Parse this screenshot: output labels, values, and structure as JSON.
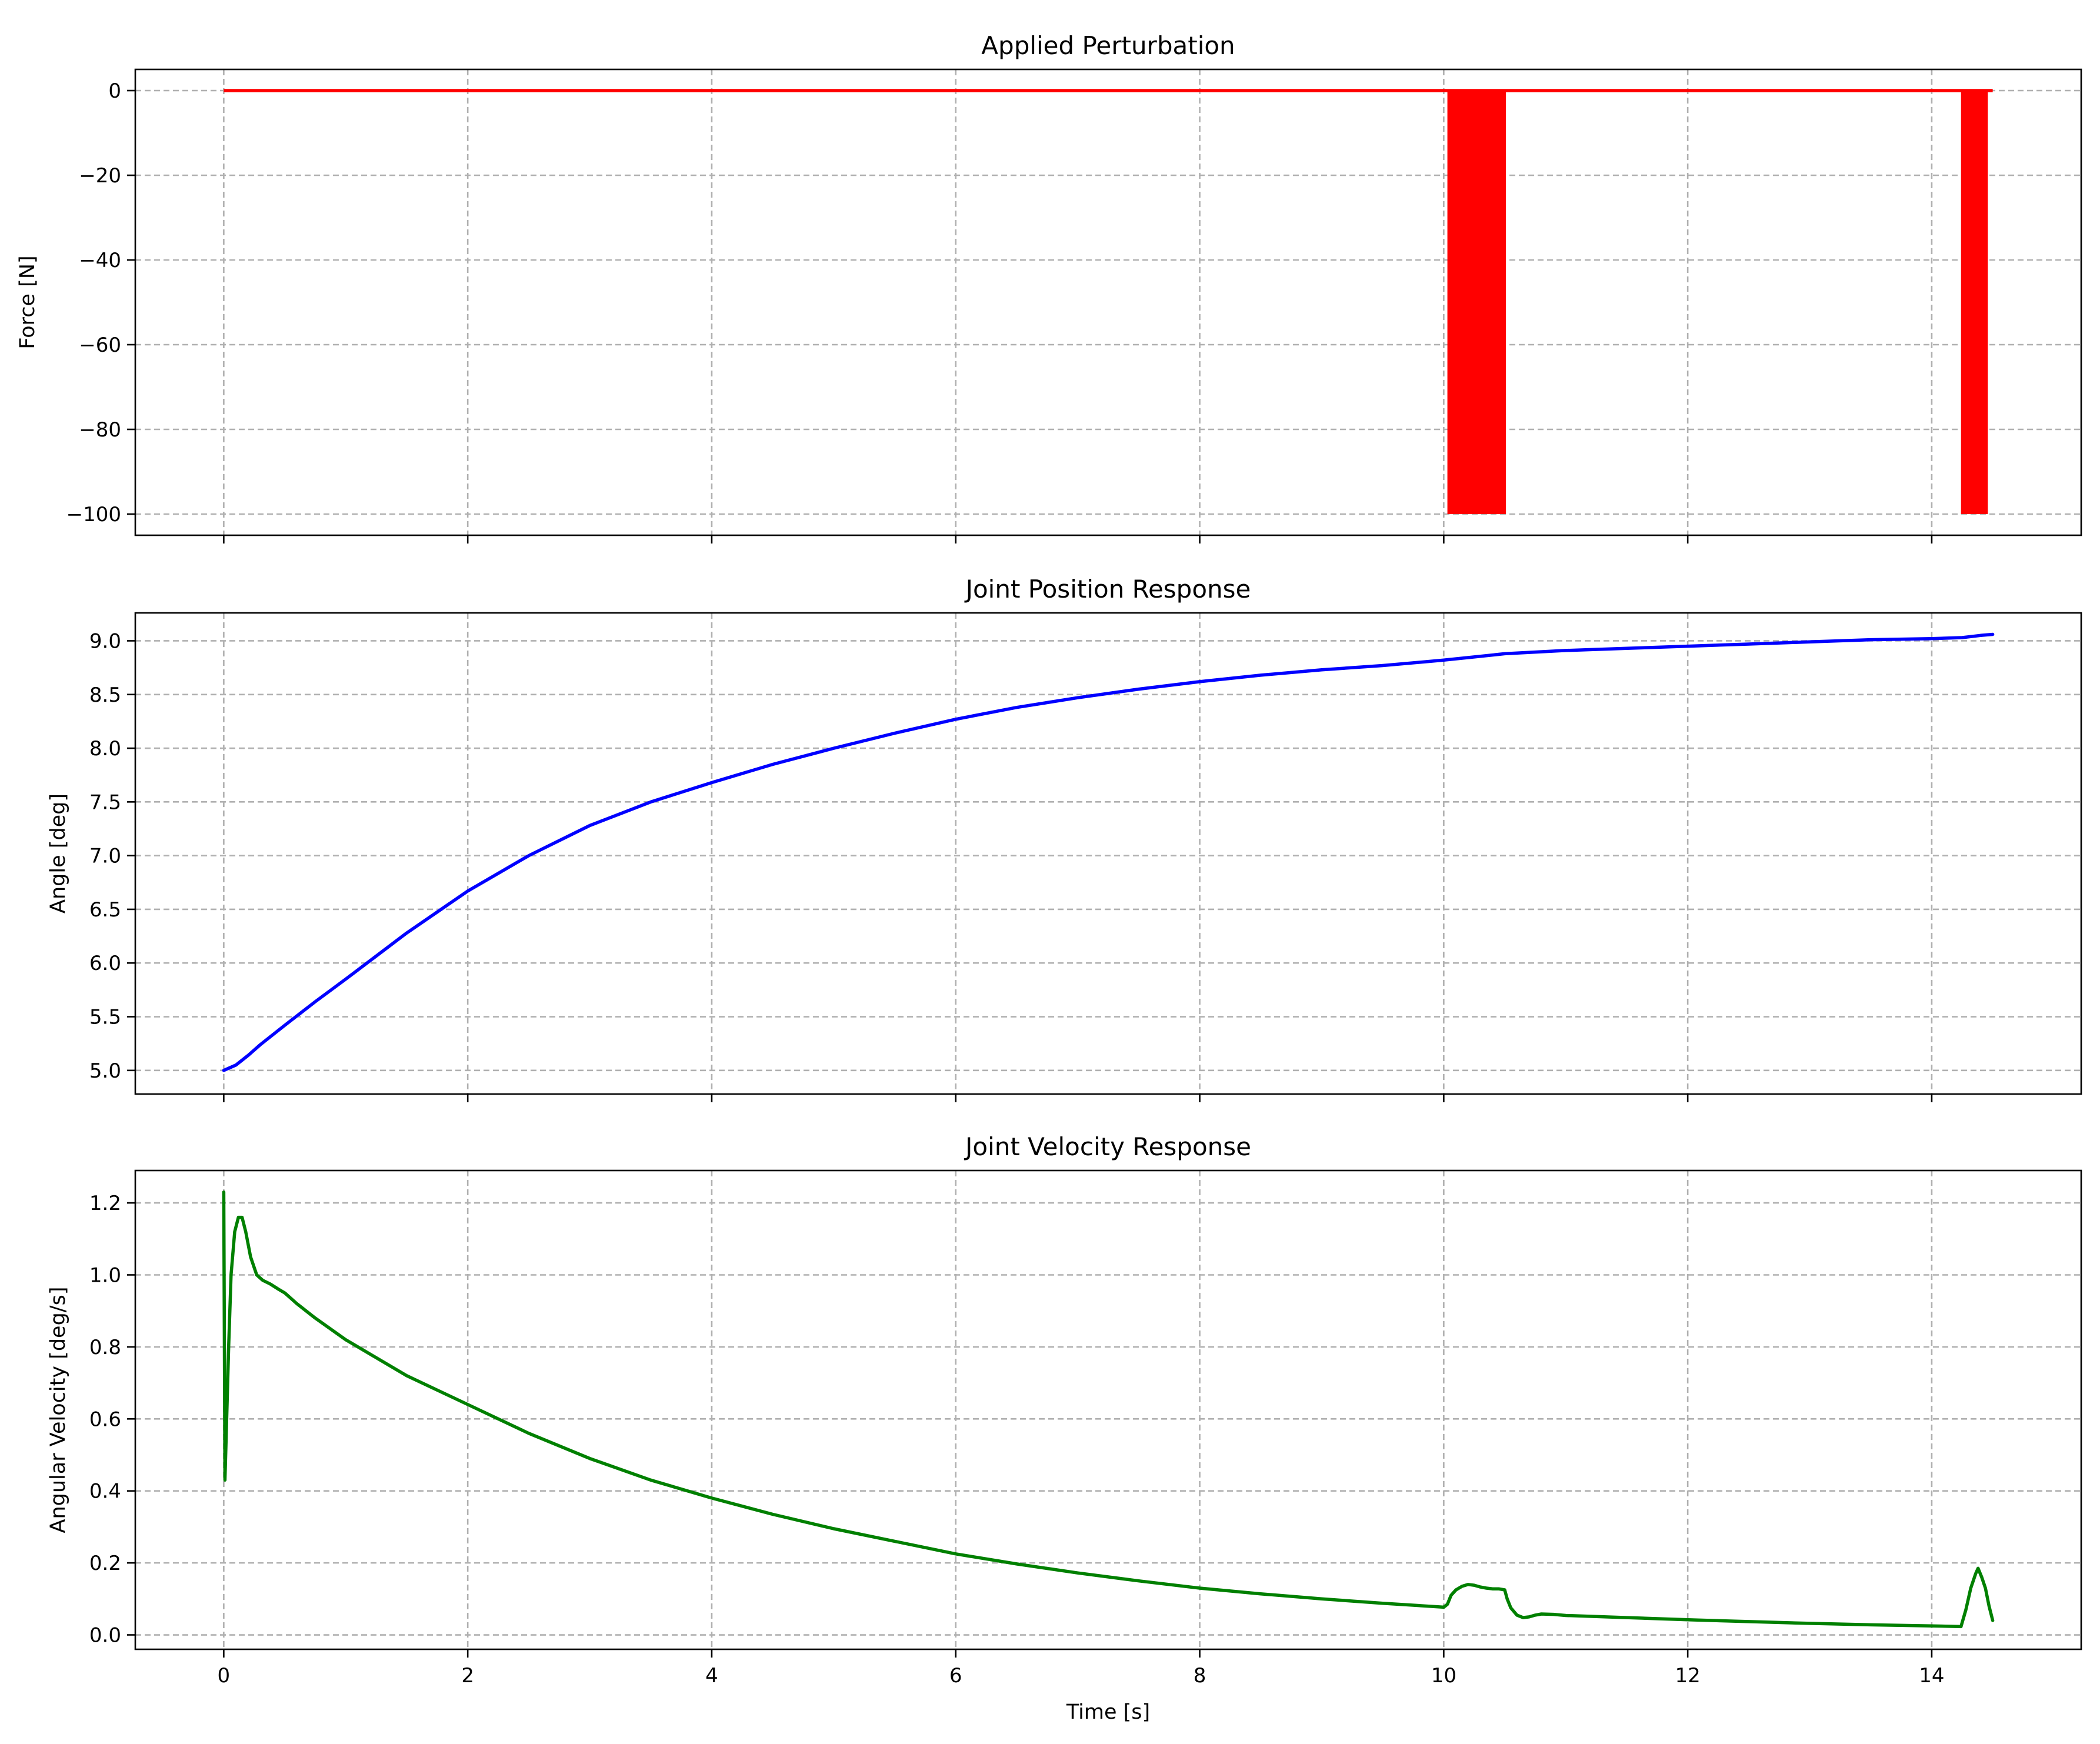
{
  "chart_data": [
    {
      "type": "line",
      "title": "Applied Perturbation",
      "xlabel": "",
      "ylabel": "Force [N]",
      "xlim": [
        -0.725,
        15.225
      ],
      "ylim": [
        -105,
        5
      ],
      "xticks": [
        0,
        2,
        4,
        6,
        8,
        10,
        12,
        14
      ],
      "show_xticklabels": false,
      "yticks": [
        0,
        -20,
        -40,
        -60,
        -80,
        -100
      ],
      "yticklabels": [
        "0",
        "−20",
        "−40",
        "−60",
        "−80",
        "−100"
      ],
      "grid": true,
      "color": "#ff0000",
      "baseline": {
        "x": [
          0,
          14.5
        ],
        "y": 0
      },
      "pulse_regions": [
        {
          "x_start": 10.03,
          "x_end": 10.51,
          "y_min": -100,
          "y_max": 0
        },
        {
          "x_start": 14.24,
          "x_end": 14.46,
          "y_min": -100,
          "y_max": 0
        }
      ]
    },
    {
      "type": "line",
      "title": "Joint Position Response",
      "xlabel": "",
      "ylabel": "Angle [deg]",
      "xlim": [
        -0.725,
        15.225
      ],
      "ylim": [
        4.78,
        9.26
      ],
      "xticks": [
        0,
        2,
        4,
        6,
        8,
        10,
        12,
        14
      ],
      "show_xticklabels": false,
      "yticks": [
        5.0,
        5.5,
        6.0,
        6.5,
        7.0,
        7.5,
        8.0,
        8.5,
        9.0
      ],
      "yticklabels": [
        "5.0",
        "5.5",
        "6.0",
        "6.5",
        "7.0",
        "7.5",
        "8.0",
        "8.5",
        "9.0"
      ],
      "grid": true,
      "color": "#0000ff",
      "series": [
        {
          "x": [
            0,
            0.1,
            0.2,
            0.3,
            0.5,
            0.75,
            1.0,
            1.5,
            2.0,
            2.5,
            3.0,
            3.5,
            4.0,
            4.5,
            5.0,
            5.5,
            6.0,
            6.5,
            7.0,
            7.5,
            8.0,
            8.5,
            9.0,
            9.5,
            10.0,
            10.25,
            10.5,
            11.0,
            11.5,
            12.0,
            12.5,
            13.0,
            13.5,
            14.0,
            14.25,
            14.4,
            14.5
          ],
          "y": [
            5.0,
            5.05,
            5.14,
            5.24,
            5.42,
            5.64,
            5.85,
            6.28,
            6.67,
            7.0,
            7.28,
            7.5,
            7.68,
            7.85,
            8.0,
            8.14,
            8.27,
            8.38,
            8.47,
            8.55,
            8.62,
            8.68,
            8.73,
            8.77,
            8.82,
            8.85,
            8.88,
            8.91,
            8.93,
            8.95,
            8.97,
            8.99,
            9.01,
            9.02,
            9.03,
            9.05,
            9.06
          ]
        }
      ]
    },
    {
      "type": "line",
      "title": "Joint Velocity Response",
      "xlabel": "Time [s]",
      "ylabel": "Angular Velocity [deg/s]",
      "xlim": [
        -0.725,
        15.225
      ],
      "ylim": [
        -0.04,
        1.29
      ],
      "xticks": [
        0,
        2,
        4,
        6,
        8,
        10,
        12,
        14
      ],
      "xticklabels": [
        "0",
        "2",
        "4",
        "6",
        "8",
        "10",
        "12",
        "14"
      ],
      "show_xticklabels": true,
      "yticks": [
        0.0,
        0.2,
        0.4,
        0.6,
        0.8,
        1.0,
        1.2
      ],
      "yticklabels": [
        "0.0",
        "0.2",
        "0.4",
        "0.6",
        "0.8",
        "1.0",
        "1.2"
      ],
      "grid": true,
      "color": "#008000",
      "series": [
        {
          "x": [
            0,
            0.01,
            0.02,
            0.04,
            0.06,
            0.09,
            0.12,
            0.15,
            0.18,
            0.22,
            0.27,
            0.32,
            0.38,
            0.45,
            0.5,
            0.6,
            0.75,
            1.0,
            1.5,
            2.0,
            2.5,
            3.0,
            3.5,
            4.0,
            4.5,
            5.0,
            5.5,
            6.0,
            6.5,
            7.0,
            7.5,
            8.0,
            8.5,
            9.0,
            9.5,
            10.0,
            10.03,
            10.06,
            10.1,
            10.15,
            10.2,
            10.25,
            10.3,
            10.35,
            10.4,
            10.45,
            10.5,
            10.52,
            10.55,
            10.6,
            10.65,
            10.7,
            10.75,
            10.8,
            10.9,
            11.0,
            11.5,
            12.0,
            12.5,
            13.0,
            13.5,
            14.0,
            14.24,
            14.28,
            14.32,
            14.36,
            14.38,
            14.41,
            14.44,
            14.47,
            14.5
          ],
          "y": [
            1.23,
            0.43,
            0.55,
            0.8,
            1.0,
            1.12,
            1.16,
            1.16,
            1.12,
            1.05,
            1.0,
            0.985,
            0.975,
            0.96,
            0.95,
            0.92,
            0.88,
            0.82,
            0.72,
            0.64,
            0.56,
            0.49,
            0.43,
            0.38,
            0.335,
            0.295,
            0.26,
            0.225,
            0.197,
            0.172,
            0.15,
            0.13,
            0.114,
            0.1,
            0.088,
            0.077,
            0.085,
            0.11,
            0.125,
            0.135,
            0.14,
            0.138,
            0.133,
            0.13,
            0.128,
            0.128,
            0.125,
            0.1,
            0.075,
            0.055,
            0.048,
            0.05,
            0.055,
            0.058,
            0.057,
            0.054,
            0.048,
            0.042,
            0.037,
            0.032,
            0.028,
            0.025,
            0.023,
            0.07,
            0.13,
            0.17,
            0.185,
            0.16,
            0.13,
            0.08,
            0.04
          ]
        }
      ]
    }
  ]
}
